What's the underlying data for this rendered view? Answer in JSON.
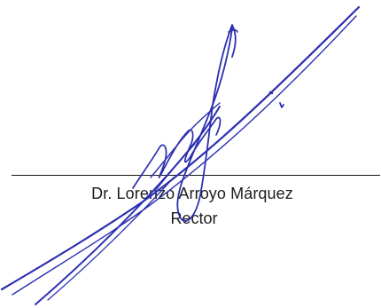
{
  "signature_block": {
    "name": "Dr. Lorenzo Arroyo Márquez",
    "title": "Rector",
    "ink_color": "#2b2fb0",
    "line_color": "#1a1a1a"
  }
}
